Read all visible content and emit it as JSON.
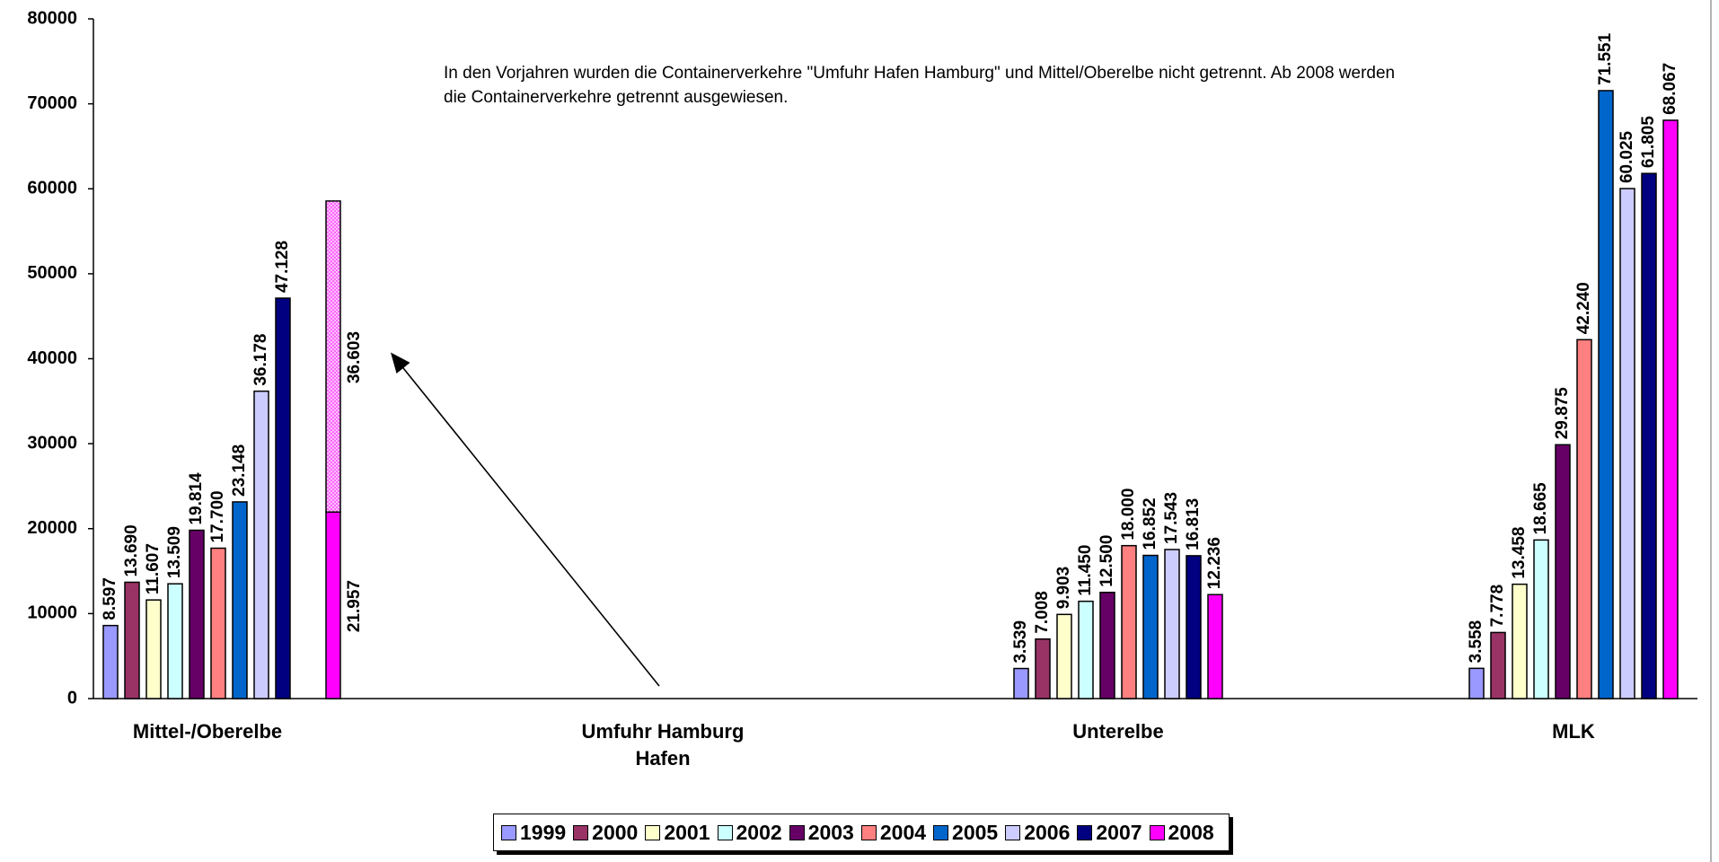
{
  "chart_data": {
    "type": "bar",
    "annotation": "In den Vorjahren wurden die Containerverkehre \"Umfuhr Hafen Hamburg\" und Mittel/Oberelbe nicht getrennt. Ab 2008 werden die Containerverkehre getrennt ausgewiesen.",
    "categories": [
      "Mittel-/Oberelbe",
      "Umfuhr Hamburg Hafen",
      "Unterelbe",
      "MLK"
    ],
    "ylim": [
      0,
      80000
    ],
    "yticks": [
      0,
      10000,
      20000,
      30000,
      40000,
      50000,
      60000,
      70000,
      80000
    ],
    "grid": false,
    "legend": "bottom",
    "series": [
      {
        "name": "1999",
        "color": "#9999ff",
        "values": [
          8597,
          null,
          3539,
          3558
        ],
        "value_labels": [
          "8.597",
          null,
          "3.539",
          "3.558"
        ]
      },
      {
        "name": "2000",
        "color": "#993366",
        "values": [
          13690,
          null,
          7008,
          7778
        ],
        "value_labels": [
          "13.690",
          null,
          "7.008",
          "7.778"
        ]
      },
      {
        "name": "2001",
        "color": "#ffffcc",
        "values": [
          11607,
          null,
          9903,
          13458
        ],
        "value_labels": [
          "11.607",
          null,
          "9.903",
          "13.458"
        ]
      },
      {
        "name": "2002",
        "color": "#ccffff",
        "values": [
          13509,
          null,
          11450,
          18665
        ],
        "value_labels": [
          "13.509",
          null,
          "11.450",
          "18.665"
        ]
      },
      {
        "name": "2003",
        "color": "#660066",
        "values": [
          19814,
          null,
          12500,
          29875
        ],
        "value_labels": [
          "19.814",
          null,
          "12.500",
          "29.875"
        ]
      },
      {
        "name": "2004",
        "color": "#ff8080",
        "values": [
          17700,
          null,
          18000,
          42240
        ],
        "value_labels": [
          "17.700",
          null,
          "18.000",
          "42.240"
        ]
      },
      {
        "name": "2005",
        "color": "#0066cc",
        "values": [
          23148,
          null,
          16852,
          71551
        ],
        "value_labels": [
          "23.148",
          null,
          "16.852",
          "71.551"
        ]
      },
      {
        "name": "2006",
        "color": "#ccccff",
        "values": [
          36178,
          null,
          17543,
          60025
        ],
        "value_labels": [
          "36.178",
          null,
          "17.543",
          "60.025"
        ]
      },
      {
        "name": "2007",
        "color": "#000080",
        "values": [
          47128,
          null,
          16813,
          61805
        ],
        "value_labels": [
          "47.128",
          null,
          "16.813",
          "61.805"
        ]
      },
      {
        "name": "2008",
        "color": "#ff00ff",
        "values": [
          21957,
          36603,
          12236,
          68067
        ],
        "value_labels": [
          "21.957",
          "36.603",
          "12.236",
          "68.067"
        ]
      }
    ]
  }
}
